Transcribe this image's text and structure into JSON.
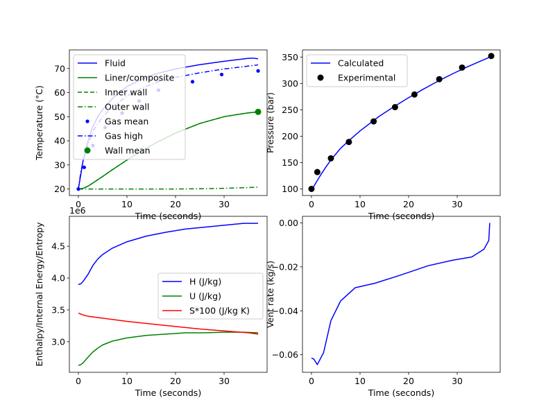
{
  "colors": {
    "blue": "#0000ff",
    "green": "#008000",
    "red": "#ff0000",
    "black": "#000000"
  },
  "chart_data": [
    {
      "type": "line",
      "title": "",
      "xlabel": "Time (seconds)",
      "ylabel": "Temperature (°C)",
      "xlim": [
        -1.85,
        38.85
      ],
      "ylim": [
        17.3,
        77.7
      ],
      "xticks": [
        0,
        10,
        20,
        30
      ],
      "yticks": [
        20,
        30,
        40,
        50,
        60,
        70
      ],
      "legend_position": "upper-left",
      "series": [
        {
          "name": "Fluid",
          "style": "solid",
          "color": "#0000ff",
          "x": [
            0,
            0.5,
            1,
            2,
            3,
            4,
            5,
            7,
            10,
            13,
            16,
            20,
            25,
            30,
            35,
            36,
            37
          ],
          "y": [
            20,
            26,
            32,
            40,
            46,
            50,
            53,
            57.5,
            62.5,
            65.5,
            67.8,
            69.8,
            71.6,
            73,
            74.2,
            74.3,
            74
          ]
        },
        {
          "name": "Liner/composite",
          "style": "solid",
          "color": "#008000",
          "x": [
            0,
            1,
            2,
            3,
            5,
            7,
            10,
            13,
            16,
            20,
            25,
            30,
            33,
            35,
            37
          ],
          "y": [
            20,
            20.3,
            21.2,
            22.5,
            25.2,
            28,
            32,
            35.8,
            39.2,
            43.2,
            47.2,
            50,
            51,
            51.6,
            52
          ]
        },
        {
          "name": "Inner wall",
          "style": "dashed",
          "color": "#008000",
          "x": [
            0,
            1,
            2,
            3,
            5,
            7,
            10,
            13,
            16,
            20,
            25,
            30,
            33,
            35,
            37
          ],
          "y": [
            20,
            20.3,
            21.2,
            22.5,
            25.2,
            28,
            32,
            35.8,
            39.2,
            43.2,
            47.2,
            50,
            51,
            51.6,
            52
          ]
        },
        {
          "name": "Outer wall",
          "style": "dashdot",
          "color": "#008000",
          "x": [
            0,
            10,
            20,
            25,
            30,
            35,
            37
          ],
          "y": [
            20,
            20,
            20,
            20.1,
            20.3,
            20.6,
            20.8
          ]
        },
        {
          "name": "Gas mean",
          "style": "dots",
          "color": "#0000ff",
          "x": [
            0,
            1.2,
            3,
            5.5,
            9,
            12.5,
            16.5,
            23.5,
            29.5,
            37
          ],
          "y": [
            20,
            29,
            38,
            45.5,
            51.5,
            56.5,
            61,
            64.5,
            67.5,
            69
          ]
        },
        {
          "name": "Gas high",
          "style": "dashdot",
          "color": "#0000ff",
          "x": [
            0,
            0.5,
            1,
            2,
            3,
            5,
            7,
            10,
            13,
            16,
            20,
            25,
            30,
            35,
            37
          ],
          "y": [
            20,
            27,
            32,
            38.5,
            44,
            50,
            54,
            58.5,
            61.8,
            64.2,
            66.3,
            68.2,
            69.8,
            71,
            71.5
          ]
        },
        {
          "name": "Wall mean",
          "style": "markers",
          "color": "#008000",
          "x": [
            37
          ],
          "y": [
            52
          ]
        }
      ],
      "legend": [
        "Fluid",
        "Liner/composite",
        "Inner wall",
        "Outer wall",
        "Gas mean",
        "Gas high",
        "Wall mean"
      ]
    },
    {
      "type": "line",
      "title": "",
      "xlabel": "Time (seconds)",
      "ylabel": "Pressure (bar)",
      "xlim": [
        -1.85,
        38.85
      ],
      "ylim": [
        87.5,
        363.5
      ],
      "xticks": [
        0,
        10,
        20,
        30
      ],
      "yticks": [
        100,
        150,
        200,
        250,
        300,
        350
      ],
      "legend_position": "upper-left",
      "series": [
        {
          "name": "Calculated",
          "style": "solid",
          "color": "#0000ff",
          "x": [
            0,
            0.5,
            1,
            2,
            3,
            4,
            5,
            6,
            8,
            10,
            12,
            14,
            17,
            20,
            23,
            26,
            29,
            32,
            35,
            37
          ],
          "y": [
            95,
            105,
            113,
            128,
            142,
            155,
            166,
            177,
            194,
            210,
            224,
            238,
            256,
            273,
            289,
            304,
            318,
            331,
            343,
            351
          ]
        },
        {
          "name": "Experimental",
          "style": "markers",
          "color": "#000000",
          "x": [
            0,
            1.2,
            4,
            7.7,
            12.8,
            17.2,
            21.2,
            26.3,
            31,
            37
          ],
          "y": [
            100,
            132,
            158,
            189,
            228,
            255,
            279,
            308,
            330,
            352
          ]
        }
      ],
      "legend": [
        "Calculated",
        "Experimental"
      ]
    },
    {
      "type": "line",
      "title": "",
      "xlabel": "Time (seconds)",
      "ylabel": "Enthalpy/Internal Energy/Entropy",
      "offset_label": "1e6",
      "xlim": [
        -1.85,
        38.85
      ],
      "ylim": [
        2.52,
        4.97
      ],
      "xticks": [
        0,
        10,
        20,
        30
      ],
      "yticks": [
        3.0,
        3.5,
        4.0,
        4.5
      ],
      "ytick_labels": [
        "3.0",
        "3.5",
        "4.0",
        "4.5"
      ],
      "legend_position": "center-right",
      "series": [
        {
          "name": "H (J/kg)",
          "style": "solid",
          "color": "#0000ff",
          "x": [
            0,
            0.5,
            1,
            2,
            3,
            4,
            5,
            7,
            10,
            14,
            18,
            22,
            26,
            30,
            34,
            37
          ],
          "y": [
            3.9,
            3.91,
            3.95,
            4.06,
            4.2,
            4.3,
            4.37,
            4.47,
            4.57,
            4.66,
            4.72,
            4.77,
            4.8,
            4.83,
            4.86,
            4.86
          ]
        },
        {
          "name": "U (J/kg)",
          "style": "solid",
          "color": "#008000",
          "x": [
            0,
            0.5,
            1,
            2,
            3,
            4,
            5,
            7,
            10,
            14,
            18,
            22,
            26,
            30,
            34,
            37
          ],
          "y": [
            2.63,
            2.64,
            2.67,
            2.76,
            2.84,
            2.9,
            2.95,
            3.01,
            3.06,
            3.1,
            3.12,
            3.14,
            3.14,
            3.15,
            3.15,
            3.14
          ]
        },
        {
          "name": "S*100 (J/kg K)",
          "style": "solid",
          "color": "#ff0000",
          "x": [
            0,
            1,
            2,
            4,
            7,
            10,
            15,
            20,
            25,
            30,
            35,
            37
          ],
          "y": [
            3.45,
            3.42,
            3.4,
            3.38,
            3.35,
            3.32,
            3.28,
            3.24,
            3.2,
            3.17,
            3.14,
            3.12
          ]
        }
      ],
      "legend": [
        "H (J/kg)",
        "U (J/kg)",
        "S*100 (J/kg K)"
      ]
    },
    {
      "type": "line",
      "title": "",
      "xlabel": "Time (seconds)",
      "ylabel": "Vent rate (kg/s)",
      "xlim": [
        -1.85,
        38.85
      ],
      "ylim": [
        -0.068,
        0.003
      ],
      "xticks": [
        0,
        10,
        20,
        30
      ],
      "yticks": [
        -0.06,
        -0.04,
        -0.02,
        0.0
      ],
      "ytick_labels": [
        "−0.06",
        "−0.04",
        "−0.02",
        "0.00"
      ],
      "series": [
        {
          "name": "Vent rate",
          "style": "solid",
          "color": "#0000ff",
          "x": [
            0,
            0.5,
            1.2,
            2.5,
            4,
            6,
            9,
            13,
            18,
            24,
            29,
            33,
            35.5,
            36.5,
            36.7
          ],
          "y": [
            -0.0615,
            -0.062,
            -0.0645,
            -0.059,
            -0.0445,
            -0.0355,
            -0.0295,
            -0.0275,
            -0.024,
            -0.0195,
            -0.017,
            -0.0155,
            -0.012,
            -0.008,
            0.0
          ]
        }
      ]
    }
  ]
}
